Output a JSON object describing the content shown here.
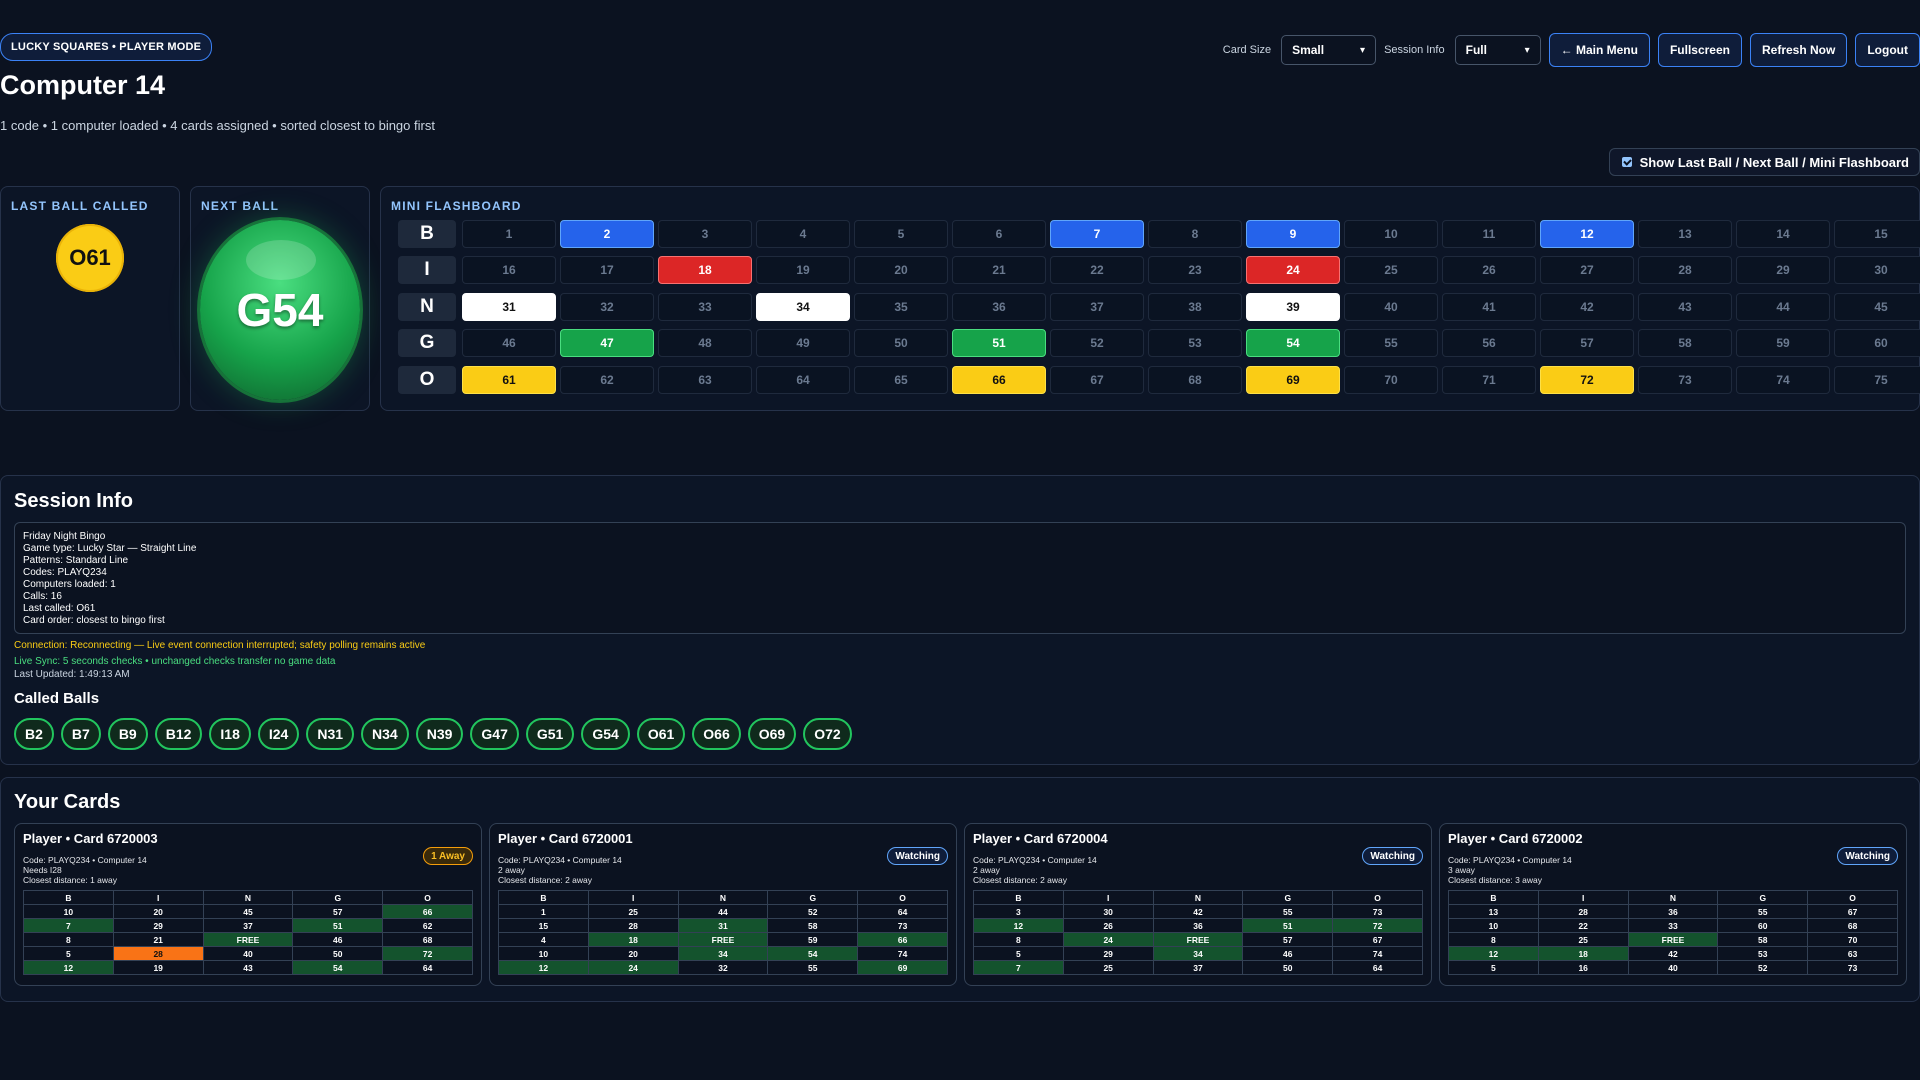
{
  "header": {
    "mode_badge": "LUCKY SQUARES • PLAYER MODE",
    "card_size_label": "Card Size",
    "card_size_value": "Small",
    "session_info_label": "Session Info",
    "session_info_value": "Full",
    "main_menu": "← Main Menu",
    "fullscreen": "Fullscreen",
    "refresh": "Refresh Now",
    "logout": "Logout"
  },
  "page": {
    "title": "Computer 14",
    "subtitle": "1 code • 1 computer loaded • 4 cards assigned • sorted closest to bingo first",
    "toggle_label": "Show Last Ball / Next Ball / Mini Flashboard"
  },
  "last_ball": {
    "label": "LAST BALL CALLED",
    "value": "O61"
  },
  "next_ball": {
    "label": "NEXT BALL",
    "value": "G54"
  },
  "flashboard": {
    "label": "MINI FLASHBOARD",
    "letters": [
      "B",
      "I",
      "N",
      "G",
      "O"
    ],
    "called": [
      2,
      7,
      9,
      12,
      18,
      24,
      31,
      34,
      39,
      47,
      51,
      54,
      61,
      66,
      69,
      72
    ]
  },
  "session": {
    "title": "Session Info",
    "lines": [
      "Friday Night Bingo",
      "Game type: Lucky Star — Straight Line",
      "Patterns: Standard Line",
      "Codes: PLAYQ234",
      "Computers loaded: 1",
      "Calls: 16",
      "Last called: O61",
      "Card order: closest to bingo first"
    ],
    "connection": "Connection: Reconnecting — Live event connection interrupted; safety polling remains active",
    "sync": "Live Sync: 5 seconds checks • unchanged checks transfer no game data",
    "updated": "Last Updated: 1:49:13 AM"
  },
  "called_balls": {
    "title": "Called Balls",
    "balls": [
      "B2",
      "B7",
      "B9",
      "B12",
      "I18",
      "I24",
      "N31",
      "N34",
      "N39",
      "G47",
      "G51",
      "G54",
      "O61",
      "O66",
      "O69",
      "O72"
    ]
  },
  "cards": {
    "title": "Your Cards",
    "headers": [
      "B",
      "I",
      "N",
      "G",
      "O"
    ],
    "items": [
      {
        "title": "Player • Card 6720003",
        "badge": "1 Away",
        "badge_type": "away",
        "meta": [
          "Code: PLAYQ234 • Computer 14",
          "Needs I28",
          "Closest distance: 1 away"
        ],
        "rows": [
          [
            "10",
            "20",
            "45",
            "57",
            "66"
          ],
          [
            "7",
            "29",
            "37",
            "51",
            "62"
          ],
          [
            "8",
            "21",
            "FREE",
            "46",
            "68"
          ],
          [
            "5",
            "28",
            "40",
            "50",
            "72"
          ],
          [
            "12",
            "19",
            "43",
            "54",
            "64"
          ]
        ],
        "need": "28"
      },
      {
        "title": "Player • Card 6720001",
        "badge": "Watching",
        "badge_type": "watch",
        "meta": [
          "Code: PLAYQ234 • Computer 14",
          "2 away",
          "Closest distance: 2 away"
        ],
        "rows": [
          [
            "1",
            "25",
            "44",
            "52",
            "64"
          ],
          [
            "15",
            "28",
            "31",
            "58",
            "73"
          ],
          [
            "4",
            "18",
            "FREE",
            "59",
            "66"
          ],
          [
            "10",
            "20",
            "34",
            "54",
            "74"
          ],
          [
            "12",
            "24",
            "32",
            "55",
            "69"
          ]
        ],
        "need": ""
      },
      {
        "title": "Player • Card 6720004",
        "badge": "Watching",
        "badge_type": "watch",
        "meta": [
          "Code: PLAYQ234 • Computer 14",
          "2 away",
          "Closest distance: 2 away"
        ],
        "rows": [
          [
            "3",
            "30",
            "42",
            "55",
            "73"
          ],
          [
            "12",
            "26",
            "36",
            "51",
            "72"
          ],
          [
            "8",
            "24",
            "FREE",
            "57",
            "67"
          ],
          [
            "5",
            "29",
            "34",
            "46",
            "74"
          ],
          [
            "7",
            "25",
            "37",
            "50",
            "64"
          ]
        ],
        "need": ""
      },
      {
        "title": "Player • Card 6720002",
        "badge": "Watching",
        "badge_type": "watch",
        "meta": [
          "Code: PLAYQ234 • Computer 14",
          "3 away",
          "Closest distance: 3 away"
        ],
        "rows": [
          [
            "13",
            "28",
            "36",
            "55",
            "67"
          ],
          [
            "10",
            "22",
            "33",
            "60",
            "68"
          ],
          [
            "8",
            "25",
            "FREE",
            "58",
            "70"
          ],
          [
            "12",
            "18",
            "42",
            "53",
            "63"
          ],
          [
            "5",
            "16",
            "40",
            "52",
            "73"
          ]
        ],
        "need": ""
      }
    ]
  }
}
